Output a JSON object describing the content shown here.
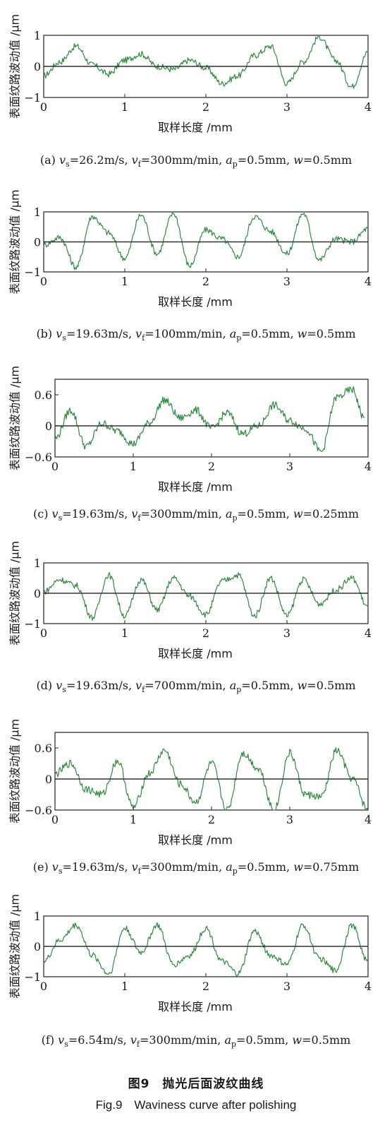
{
  "figure_caption_cn": "图9　抛光后面波纹曲线",
  "figure_caption_en": "Fig.9　Waviness curve after polishing",
  "colors": {
    "curve": "#2e8b3d",
    "baseline": "#333333",
    "axis": "#222222"
  },
  "chart_data": [
    {
      "type": "line",
      "panel": "a",
      "ylabel": "表面纹路波动值 /μm",
      "xlabel": "取样长度 /mm",
      "xlim": [
        0,
        4
      ],
      "ylim": [
        -1,
        1
      ],
      "xticks": [
        0,
        1,
        2,
        3,
        4
      ],
      "yticks": [
        -1,
        0,
        1
      ],
      "ytick_labels": [
        "−1",
        "0",
        "1"
      ],
      "caption": "(a) v_s=26.2m/s, v_f=300mm/min, a_p=0.5mm, w=0.5mm",
      "caption_parts": [
        "(a) ",
        "v",
        "s",
        "=26.2m/s, ",
        "v",
        "f",
        "=300mm/min, ",
        "a",
        "p",
        "=0.5mm, ",
        "w",
        "=0.5mm"
      ],
      "series": [
        {
          "x": [
            0,
            0.2,
            0.4,
            0.6,
            0.8,
            1.0,
            1.2,
            1.4,
            1.6,
            1.8,
            2.0,
            2.2,
            2.4,
            2.6,
            2.8,
            3.0,
            3.2,
            3.4,
            3.6,
            3.8,
            4.0
          ],
          "y": [
            -0.3,
            0.15,
            0.65,
            0.05,
            -0.25,
            0.2,
            0.4,
            0.0,
            -0.1,
            0.2,
            -0.05,
            -0.55,
            -0.3,
            0.35,
            0.65,
            -0.55,
            0.15,
            0.95,
            0.2,
            -0.65,
            0.45
          ]
        }
      ]
    },
    {
      "type": "line",
      "panel": "b",
      "ylabel": "表面纹路波动值 /μm",
      "xlabel": "取样长度 /mm",
      "xlim": [
        0,
        4
      ],
      "ylim": [
        -1,
        1
      ],
      "xticks": [
        0,
        1,
        2,
        3,
        4
      ],
      "yticks": [
        -1,
        0,
        1
      ],
      "ytick_labels": [
        "−1",
        "0",
        "1"
      ],
      "caption": "(b) v_s=19.63m/s, v_f=100mm/min, a_p=0.5mm, w=0.5mm",
      "caption_parts": [
        "(b) ",
        "v",
        "s",
        "=19.63m/s, ",
        "v",
        "f",
        "=100mm/min, ",
        "a",
        "p",
        "=0.5mm, ",
        "w",
        "=0.5mm"
      ],
      "series": [
        {
          "x": [
            0,
            0.2,
            0.4,
            0.6,
            0.8,
            1.0,
            1.2,
            1.4,
            1.6,
            1.8,
            2.0,
            2.2,
            2.4,
            2.6,
            2.8,
            3.0,
            3.2,
            3.4,
            3.6,
            3.8,
            4.0
          ],
          "y": [
            -0.1,
            0.15,
            -0.85,
            0.85,
            0.3,
            -0.55,
            0.9,
            -0.4,
            0.95,
            -0.8,
            0.4,
            0.1,
            -0.5,
            0.85,
            0.35,
            -0.4,
            0.95,
            -0.6,
            0.1,
            0.0,
            0.45
          ]
        }
      ]
    },
    {
      "type": "line",
      "panel": "c",
      "ylabel": "表面纹路波动值 /μm",
      "xlabel": "取样长度 /mm",
      "xlim": [
        0,
        4
      ],
      "ylim": [
        -0.6,
        0.9
      ],
      "xticks": [
        0,
        1,
        2,
        3,
        4
      ],
      "yticks": [
        -0.6,
        0,
        0.6
      ],
      "ytick_labels": [
        "−0.6",
        "0",
        "0.6"
      ],
      "caption": "(c) v_s=19.63m/s, v_f=300mm/min, a_p=0.5mm, w=0.25mm",
      "caption_parts": [
        "(c) ",
        "v",
        "s",
        "=19.63m/s, ",
        "v",
        "f",
        "=300mm/min, ",
        "a",
        "p",
        "=0.5mm, ",
        "w",
        "=0.25mm"
      ],
      "series": [
        {
          "x": [
            0,
            0.2,
            0.4,
            0.6,
            0.8,
            1.0,
            1.2,
            1.4,
            1.6,
            1.8,
            2.0,
            2.2,
            2.4,
            2.6,
            2.8,
            3.0,
            3.2,
            3.4,
            3.6,
            3.8,
            3.95
          ],
          "y": [
            -0.25,
            0.3,
            -0.4,
            0.05,
            -0.1,
            -0.35,
            0.05,
            0.5,
            0.15,
            0.3,
            -0.05,
            0.25,
            -0.15,
            0.0,
            0.4,
            0.1,
            -0.05,
            -0.5,
            0.55,
            0.7,
            0.15
          ]
        }
      ]
    },
    {
      "type": "line",
      "panel": "d",
      "ylabel": "表面纹路波动值 /μm",
      "xlabel": "取样长度 /mm",
      "xlim": [
        0,
        4
      ],
      "ylim": [
        -1,
        1
      ],
      "xticks": [
        0,
        1,
        2,
        3,
        4
      ],
      "yticks": [
        -1,
        0,
        1
      ],
      "ytick_labels": [
        "−1",
        "0",
        "1"
      ],
      "caption": "(d) v_s=19.63m/s, v_f=700mm/min, a_p=0.5mm, w=0.5mm",
      "caption_parts": [
        "(d) ",
        "v",
        "s",
        "=19.63m/s, ",
        "v",
        "f",
        "=700mm/min, ",
        "a",
        "p",
        "=0.5mm, ",
        "w",
        "=0.5mm"
      ],
      "series": [
        {
          "x": [
            0,
            0.2,
            0.4,
            0.6,
            0.8,
            1.0,
            1.2,
            1.4,
            1.6,
            1.8,
            2.0,
            2.2,
            2.4,
            2.6,
            2.8,
            3.0,
            3.2,
            3.4,
            3.6,
            3.8,
            4.0
          ],
          "y": [
            0.05,
            0.45,
            0.25,
            -0.8,
            0.6,
            -0.75,
            0.45,
            -0.55,
            0.5,
            -0.1,
            -0.7,
            0.4,
            0.6,
            -0.75,
            0.5,
            -0.75,
            0.45,
            -0.35,
            0.1,
            0.5,
            -0.45
          ]
        }
      ]
    },
    {
      "type": "line",
      "panel": "e",
      "ylabel": "表面纹路波动值 /μm",
      "xlabel": "取样长度 /mm",
      "xlim": [
        0,
        4
      ],
      "ylim": [
        -0.6,
        0.9
      ],
      "xticks": [
        0,
        1,
        2,
        3,
        4
      ],
      "yticks": [
        -0.6,
        0,
        0.6
      ],
      "ytick_labels": [
        "−0.6",
        "0",
        "0.6"
      ],
      "caption": "(e) v_s=19.63m/s, v_f=300mm/min, a_p=0.5mm, w=0.75mm",
      "caption_parts": [
        "(e) ",
        "v",
        "s",
        "=19.63m/s, ",
        "v",
        "f",
        "=300mm/min, ",
        "a",
        "p",
        "=0.5mm, ",
        "w",
        "=0.75mm"
      ],
      "series": [
        {
          "x": [
            0,
            0.2,
            0.4,
            0.6,
            0.8,
            1.0,
            1.2,
            1.4,
            1.6,
            1.8,
            2.0,
            2.2,
            2.4,
            2.6,
            2.8,
            3.0,
            3.2,
            3.4,
            3.6,
            3.8,
            4.0
          ],
          "y": [
            0.1,
            0.3,
            -0.2,
            -0.3,
            0.35,
            -0.55,
            0.1,
            0.55,
            -0.1,
            -0.45,
            0.3,
            -0.6,
            0.5,
            0.2,
            -0.6,
            0.5,
            -0.3,
            -0.35,
            0.55,
            0.0,
            -0.6
          ]
        }
      ]
    },
    {
      "type": "line",
      "panel": "f",
      "ylabel": "表面纹路波动值 /μm",
      "xlabel": "取样长度 /mm",
      "xlim": [
        0,
        4
      ],
      "ylim": [
        -1,
        1
      ],
      "xticks": [
        0,
        1,
        2,
        3,
        4
      ],
      "yticks": [
        -1,
        0,
        1
      ],
      "ytick_labels": [
        "−1",
        "0",
        "1"
      ],
      "caption": "(f) v_s=6.54m/s, v_f=300mm/min, a_p=0.5mm, w=0.5mm",
      "caption_parts": [
        "(f) ",
        "v",
        "s",
        "=6.54m/s, ",
        "v",
        "f",
        "=300mm/min, ",
        "a",
        "p",
        "=0.5mm, ",
        "w",
        "=0.5mm"
      ],
      "series": [
        {
          "x": [
            0,
            0.2,
            0.4,
            0.6,
            0.8,
            1.0,
            1.2,
            1.4,
            1.6,
            1.8,
            2.0,
            2.2,
            2.4,
            2.6,
            2.8,
            3.0,
            3.2,
            3.4,
            3.6,
            3.8,
            4.0
          ],
          "y": [
            -0.5,
            0.2,
            0.7,
            -0.3,
            -0.9,
            0.6,
            -0.2,
            0.7,
            -0.6,
            -0.3,
            0.6,
            -0.5,
            -0.9,
            0.5,
            -0.3,
            -0.6,
            0.7,
            -0.4,
            -0.8,
            0.7,
            -0.5
          ]
        }
      ]
    }
  ]
}
